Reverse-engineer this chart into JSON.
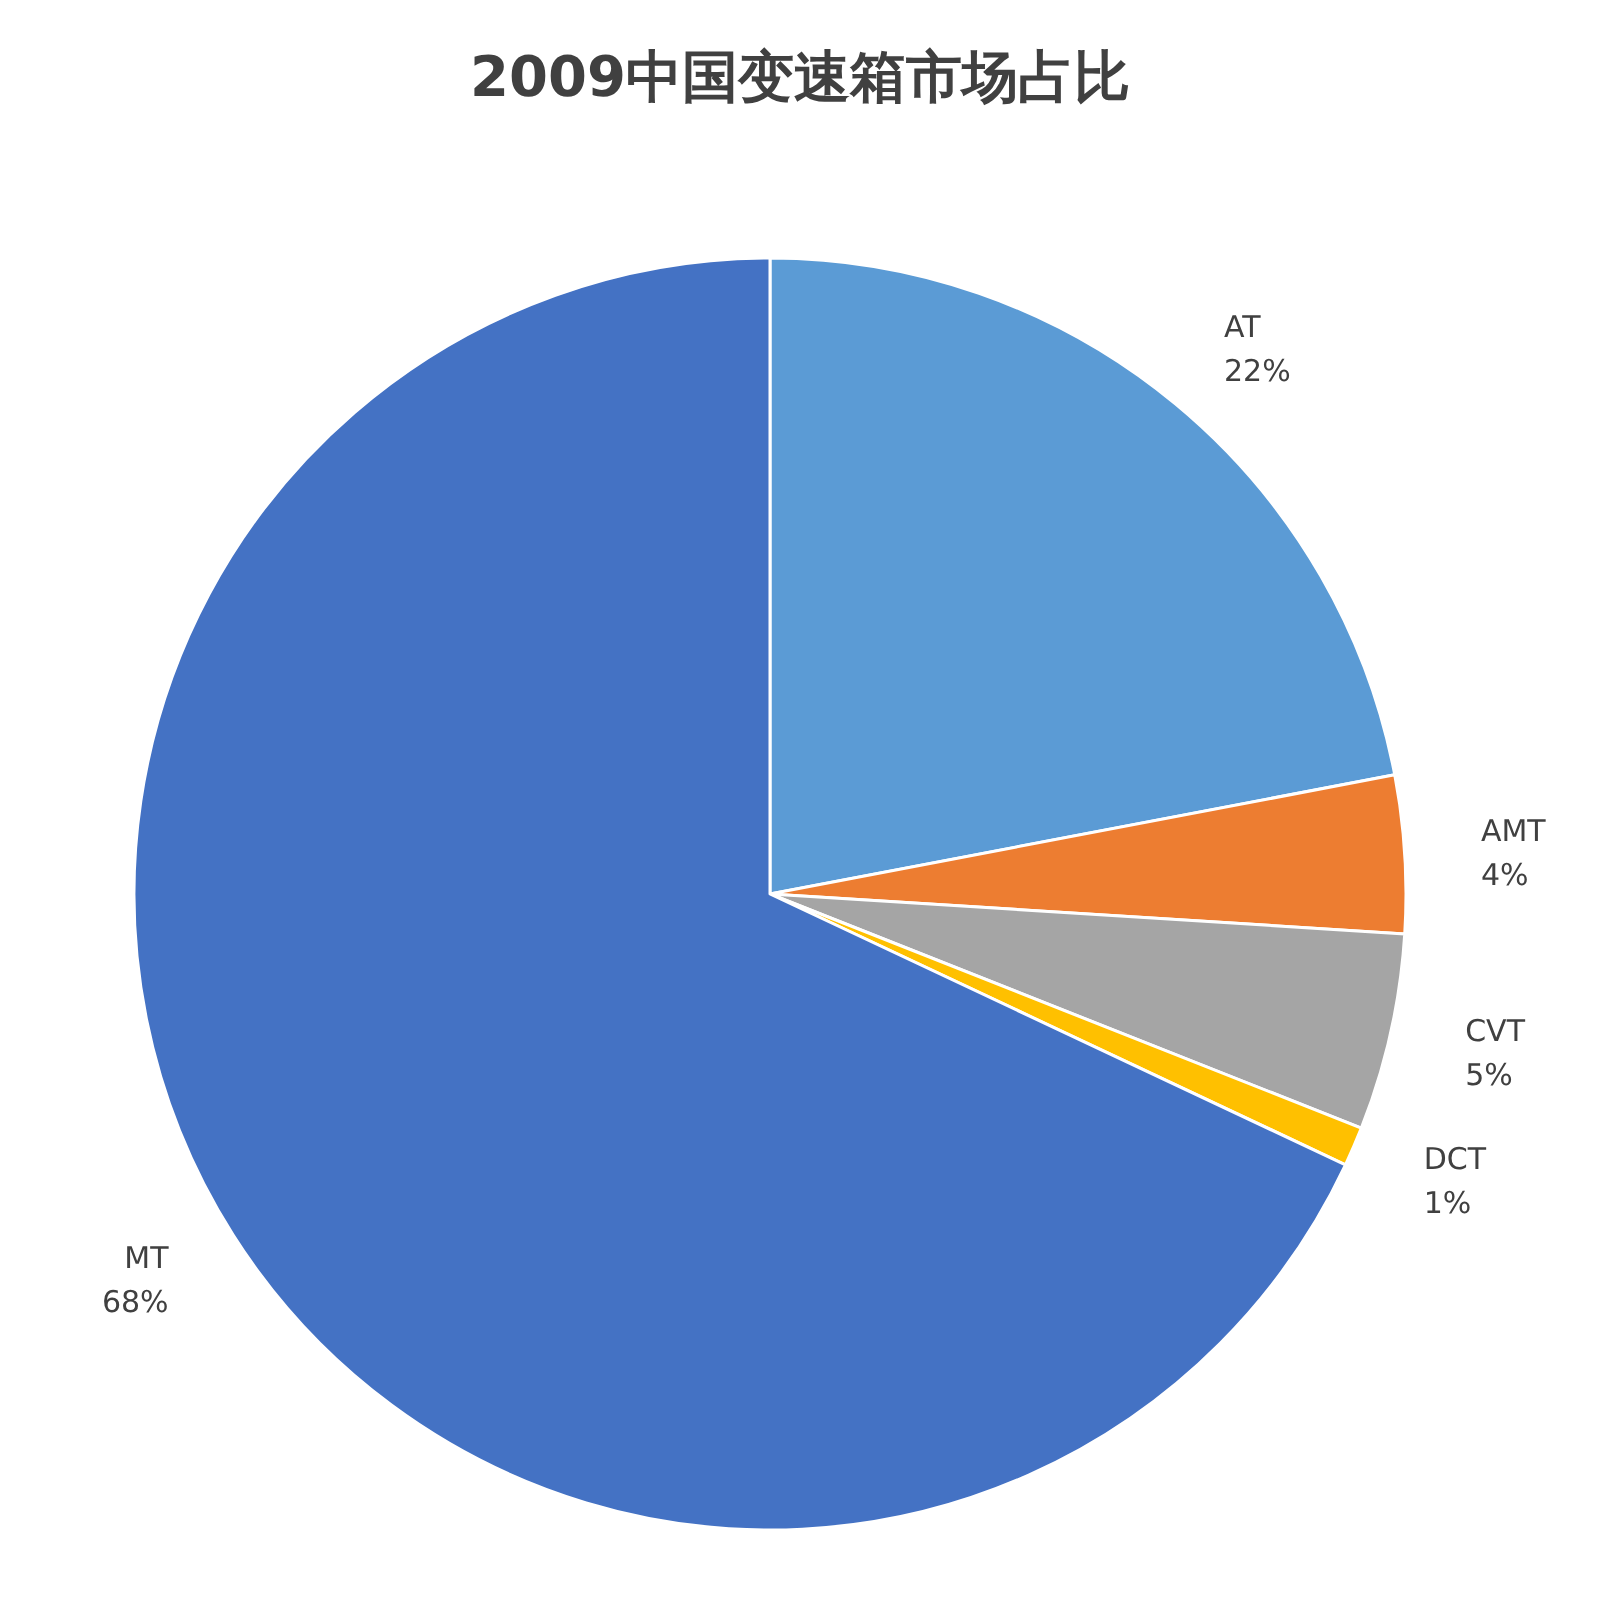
{
  "chart_data": {
    "type": "pie",
    "title": "2009中国变速箱市场占比",
    "categories": [
      "AT",
      "AMT",
      "CVT",
      "DCT",
      "MT"
    ],
    "values": [
      22,
      4,
      5,
      1,
      68
    ],
    "value_labels": [
      "22%",
      "4%",
      "5%",
      "1%",
      "68%"
    ],
    "colors": [
      "#5b9bd5",
      "#ed7d31",
      "#a5a5a5",
      "#ffc000",
      "#4472c4"
    ]
  }
}
